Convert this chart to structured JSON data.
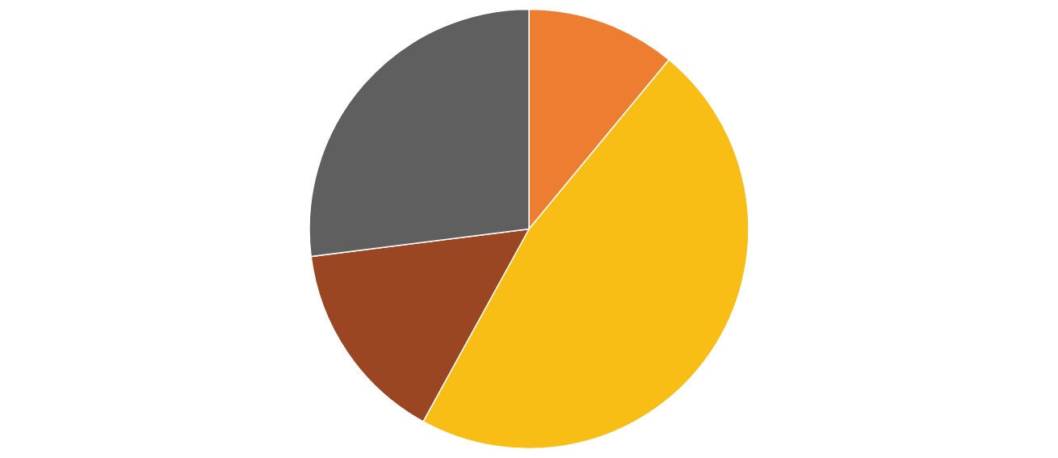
{
  "chart_data": {
    "type": "pie",
    "categories": [
      null,
      null,
      null,
      null
    ],
    "values": [
      11,
      47,
      15,
      27
    ],
    "colors": [
      "#ed7d31",
      "#f8be16",
      "#9b4622",
      "#5f5f5f"
    ]
  }
}
